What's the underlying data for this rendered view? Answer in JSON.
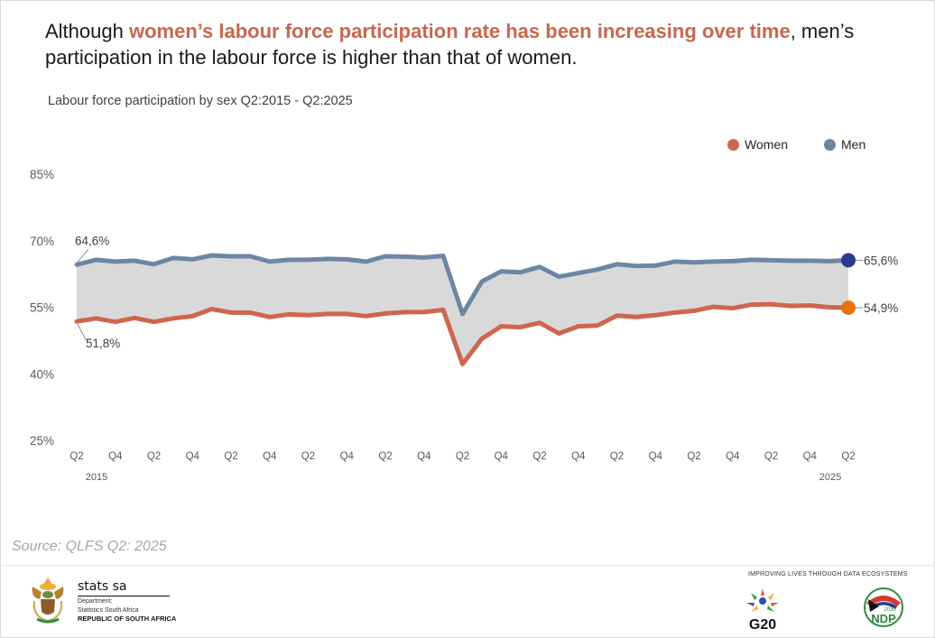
{
  "headline": {
    "prefix": "Although ",
    "highlight": "women’s labour force participation rate has been increasing over time",
    "suffix": ", men’s participation in the labour force is higher than that of women."
  },
  "subtitle": "Labour force participation by sex Q2:2015 - Q2:2025",
  "legend": [
    {
      "label": "Women",
      "color": "#d0654d"
    },
    {
      "label": "Men",
      "color": "#6e86a4"
    }
  ],
  "chart_data": {
    "type": "line",
    "title": "Labour force participation by sex Q2:2015 - Q2:2025",
    "xlabel": "",
    "ylabel": "",
    "ylim": [
      25,
      85
    ],
    "y_ticks": [
      85,
      70,
      55,
      40,
      25
    ],
    "y_tick_labels": [
      "85%",
      "70%",
      "55%",
      "40%",
      "25%"
    ],
    "x": [
      "2015Q2",
      "2015Q3",
      "2015Q4",
      "2016Q1",
      "2016Q2",
      "2016Q3",
      "2016Q4",
      "2017Q1",
      "2017Q2",
      "2017Q3",
      "2017Q4",
      "2018Q1",
      "2018Q2",
      "2018Q3",
      "2018Q4",
      "2019Q1",
      "2019Q2",
      "2019Q3",
      "2019Q4",
      "2020Q1",
      "2020Q2",
      "2020Q3",
      "2020Q4",
      "2021Q1",
      "2021Q2",
      "2021Q3",
      "2021Q4",
      "2022Q1",
      "2022Q2",
      "2022Q3",
      "2022Q4",
      "2023Q1",
      "2023Q2",
      "2023Q3",
      "2023Q4",
      "2024Q1",
      "2024Q2",
      "2024Q3",
      "2024Q4",
      "2025Q1",
      "2025Q2"
    ],
    "x_tick_labels": [
      "Q2",
      "Q4",
      "Q2",
      "Q4",
      "Q2",
      "Q4",
      "Q2",
      "Q4",
      "Q2",
      "Q4",
      "Q2",
      "Q4",
      "Q2",
      "Q4",
      "Q2",
      "Q4",
      "Q2",
      "Q4",
      "Q2",
      "Q4",
      "Q2"
    ],
    "year_labels": [
      {
        "label": "2015",
        "at": "2015Q2"
      },
      {
        "label": "2025",
        "at": "2025Q2"
      }
    ],
    "series": [
      {
        "name": "Men",
        "color": "#6e86a4",
        "end_marker_color": "#2d3a8c",
        "values": [
          64.6,
          65.7,
          65.3,
          65.5,
          64.7,
          66.1,
          65.8,
          66.7,
          66.5,
          66.5,
          65.3,
          65.7,
          65.7,
          65.9,
          65.8,
          65.3,
          66.5,
          66.4,
          66.2,
          66.6,
          53.5,
          60.8,
          63.1,
          62.9,
          64.1,
          61.9,
          62.7,
          63.5,
          64.7,
          64.3,
          64.4,
          65.3,
          65.1,
          65.3,
          65.4,
          65.7,
          65.6,
          65.5,
          65.5,
          65.4,
          65.6
        ]
      },
      {
        "name": "Women",
        "color": "#d0654d",
        "end_marker_color": "#e8730c",
        "values": [
          51.8,
          52.5,
          51.7,
          52.6,
          51.7,
          52.5,
          53.0,
          54.6,
          53.8,
          53.8,
          52.8,
          53.4,
          53.2,
          53.5,
          53.5,
          53.0,
          53.6,
          53.9,
          53.9,
          54.4,
          42.2,
          47.9,
          50.7,
          50.5,
          51.5,
          49.1,
          50.7,
          50.9,
          53.1,
          52.8,
          53.2,
          53.8,
          54.2,
          55.1,
          54.8,
          55.6,
          55.7,
          55.3,
          55.4,
          55.0,
          54.9
        ]
      }
    ],
    "gap_fill_color": "#d9d9d9",
    "annotations": [
      {
        "series": "Men",
        "at": "2015Q2",
        "text": "64,6%"
      },
      {
        "series": "Women",
        "at": "2015Q2",
        "text": "51,8%"
      },
      {
        "series": "Men",
        "at": "2025Q2",
        "text": "65,6%"
      },
      {
        "series": "Women",
        "at": "2025Q2",
        "text": "54,9%"
      }
    ],
    "legend_position": "top-right",
    "grid": false
  },
  "source": "Source: QLFS Q2: 2025",
  "footer": {
    "org_name": "stats sa",
    "dept_line1": "Department:",
    "dept_line2": "Statistics South Africa",
    "country": "REPUBLIC OF SOUTH AFRICA",
    "tagline": "IMPROVING LIVES THROUGH DATA ECOSYSTEMS",
    "g20_label": "G20",
    "ndp_label": "NDP",
    "ndp_year": "2030"
  }
}
